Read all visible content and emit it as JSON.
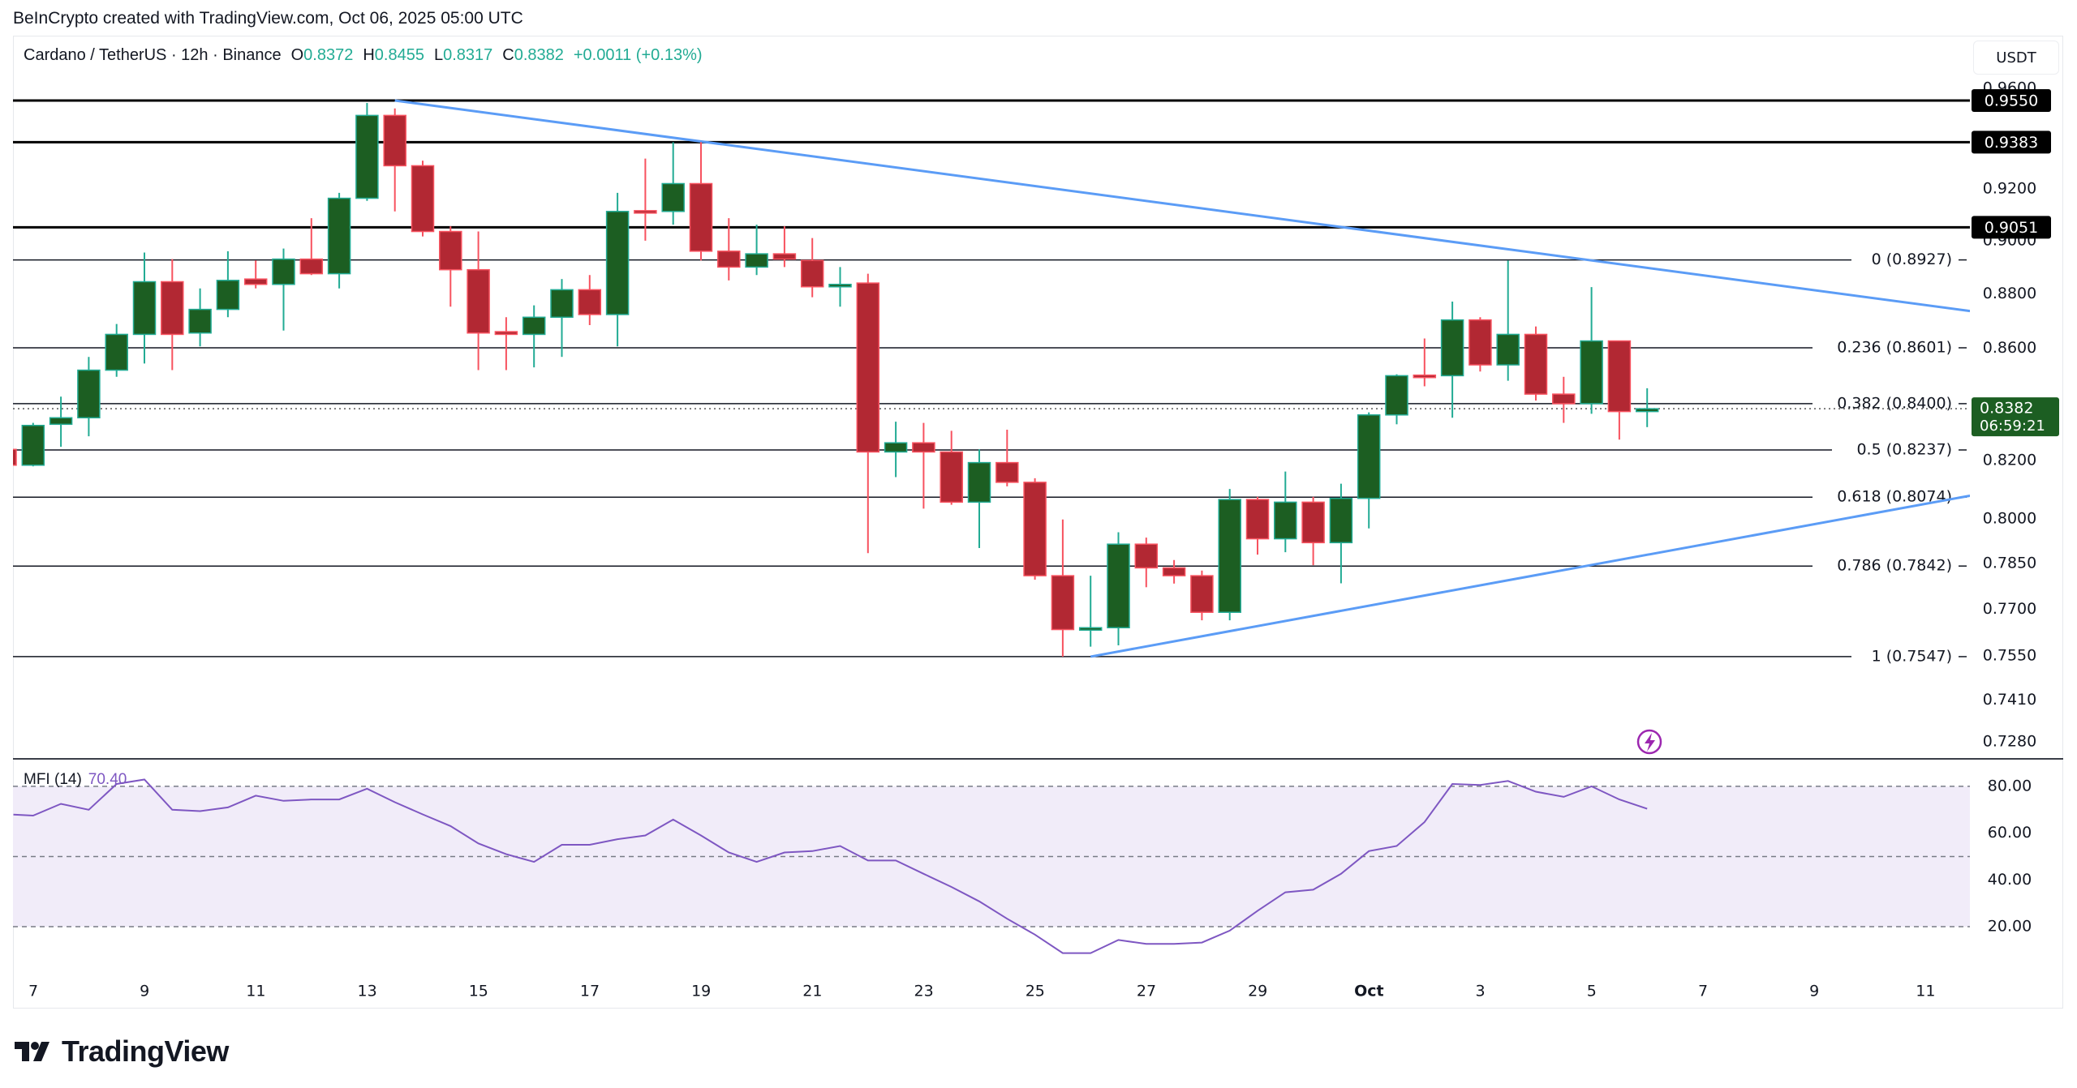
{
  "header": {
    "attribution": "BeInCrypto created with TradingView.com, Oct 06, 2025 05:00 UTC"
  },
  "symbol": {
    "name": "Cardano / TetherUS · 12h · Binance",
    "o_label": "O",
    "o": "0.8372",
    "h_label": "H",
    "h": "0.8455",
    "l_label": "L",
    "l": "0.8317",
    "c_label": "C",
    "c": "0.8382",
    "change": "+0.0011 (+0.13%)"
  },
  "currency_button": "USDT",
  "colors": {
    "up_body": "#1c5e22",
    "up_border": "#22ab94",
    "down_body": "#b22833",
    "down_border": "#f7525f",
    "trendline": "#5b9cf6",
    "mfi_line": "#7e57c2",
    "mfi_band": "#f1ecf9",
    "last_price_bg": "#1c5e22",
    "lightning": "#9c27b0"
  },
  "chart_data": {
    "type": "candlestick",
    "title": "Cardano / TetherUS · 12h · Binance",
    "scale": "log",
    "ylim": [
      0.72,
      0.965
    ],
    "candles": {
      "open": [
        0.8239,
        0.8184,
        0.8327,
        0.835,
        0.852,
        0.865,
        0.8845,
        0.8655,
        0.8742,
        0.8855,
        0.8835,
        0.893,
        0.8875,
        0.9163,
        0.949,
        0.929,
        0.9035,
        0.889,
        0.866,
        0.865,
        0.8713,
        0.8815,
        0.8723,
        0.9115,
        0.9112,
        0.922,
        0.896,
        0.89,
        0.895,
        0.8925,
        0.8826,
        0.884,
        0.823,
        0.8262,
        0.823,
        0.8057,
        0.8193,
        0.8125,
        0.781,
        0.7634,
        0.764,
        0.7915,
        0.7836,
        0.781,
        0.769,
        0.8066,
        0.7933,
        0.8057,
        0.792,
        0.807,
        0.836,
        0.8502,
        0.85,
        0.8703,
        0.8539,
        0.865,
        0.8434,
        0.84,
        0.8626,
        0.8372
      ],
      "high": [
        0.8245,
        0.8332,
        0.8425,
        0.8568,
        0.8688,
        0.8955,
        0.893,
        0.882,
        0.896,
        0.8925,
        0.897,
        0.9086,
        0.9184,
        0.954,
        0.9518,
        0.931,
        0.9055,
        0.9035,
        0.8713,
        0.8757,
        0.8855,
        0.887,
        0.9184,
        0.9318,
        0.9383,
        0.9383,
        0.9086,
        0.9061,
        0.9055,
        0.901,
        0.89,
        0.8875,
        0.8336,
        0.8332,
        0.8304,
        0.8239,
        0.8308,
        0.8139,
        0.7998,
        0.781,
        0.7955,
        0.7937,
        0.7862,
        0.7827,
        0.8102,
        0.8075,
        0.8162,
        0.8075,
        0.812,
        0.8369,
        0.8505,
        0.8635,
        0.8771,
        0.8713,
        0.8925,
        0.8679,
        0.8496,
        0.8825,
        0.8626,
        0.8455
      ],
      "low": [
        0.818,
        0.818,
        0.8248,
        0.8285,
        0.8496,
        0.8544,
        0.852,
        0.8606,
        0.8713,
        0.882,
        0.8664,
        0.887,
        0.882,
        0.9153,
        0.9112,
        0.9016,
        0.8752,
        0.852,
        0.852,
        0.853,
        0.8568,
        0.8684,
        0.8606,
        0.9,
        0.9061,
        0.8925,
        0.885,
        0.887,
        0.89,
        0.8787,
        0.8752,
        0.7885,
        0.8143,
        0.8035,
        0.8048,
        0.7902,
        0.8111,
        0.7797,
        0.7547,
        0.7579,
        0.7583,
        0.7772,
        0.7784,
        0.7664,
        0.7664,
        0.788,
        0.7888,
        0.7845,
        0.7785,
        0.7968,
        0.8327,
        0.8462,
        0.835,
        0.8515,
        0.8482,
        0.8411,
        0.8332,
        0.8364,
        0.8273,
        0.8317
      ],
      "close": [
        0.8184,
        0.8323,
        0.835,
        0.852,
        0.865,
        0.8845,
        0.865,
        0.8742,
        0.885,
        0.8835,
        0.893,
        0.8875,
        0.9163,
        0.949,
        0.929,
        0.9035,
        0.889,
        0.8655,
        0.865,
        0.8713,
        0.8815,
        0.8723,
        0.9112,
        0.911,
        0.922,
        0.896,
        0.89,
        0.895,
        0.893,
        0.8826,
        0.8835,
        0.823,
        0.8262,
        0.823,
        0.8057,
        0.8193,
        0.8125,
        0.781,
        0.7634,
        0.764,
        0.7915,
        0.7836,
        0.781,
        0.769,
        0.8066,
        0.7933,
        0.8057,
        0.792,
        0.807,
        0.836,
        0.85,
        0.8498,
        0.8703,
        0.8539,
        0.865,
        0.8434,
        0.84,
        0.8626,
        0.8372,
        0.8382
      ]
    },
    "price_ticks": [
      "0.9600",
      "0.9200",
      "0.9000",
      "0.8800",
      "0.8600",
      "0.8200",
      "0.8000",
      "0.7850",
      "0.7700",
      "0.7550",
      "0.7410",
      "0.7280"
    ],
    "horizontal_levels": [
      "0.9550",
      "0.9383",
      "0.9051"
    ],
    "fib_levels": [
      {
        "ratio": "0",
        "price": "0.8927"
      },
      {
        "ratio": "0.236",
        "price": "0.8601"
      },
      {
        "ratio": "0.382",
        "price": "0.8400"
      },
      {
        "ratio": "0.5",
        "price": "0.8237"
      },
      {
        "ratio": "0.618",
        "price": "0.8074"
      },
      {
        "ratio": "0.786",
        "price": "0.7842"
      },
      {
        "ratio": "1",
        "price": "0.7547"
      }
    ],
    "trendlines": [
      {
        "name": "descending-resistance",
        "from": {
          "bar": 14,
          "price": 0.955
        },
        "to": {
          "bar": 70.6,
          "price": 0.8736
        }
      },
      {
        "name": "ascending-support",
        "from": {
          "bar": 39,
          "price": 0.7547
        },
        "to": {
          "bar": 70.6,
          "price": 0.8079
        }
      }
    ],
    "last_price": "0.8382",
    "countdown": "06:59:21",
    "x_ticks": [
      {
        "label": "7",
        "day": 0
      },
      {
        "label": "9",
        "day": 2
      },
      {
        "label": "11",
        "day": 4
      },
      {
        "label": "13",
        "day": 6
      },
      {
        "label": "15",
        "day": 8
      },
      {
        "label": "17",
        "day": 10
      },
      {
        "label": "19",
        "day": 12
      },
      {
        "label": "21",
        "day": 14
      },
      {
        "label": "23",
        "day": 16
      },
      {
        "label": "25",
        "day": 18
      },
      {
        "label": "27",
        "day": 20
      },
      {
        "label": "29",
        "day": 22
      },
      {
        "label": "Oct",
        "day": 24,
        "bold": true
      },
      {
        "label": "3",
        "day": 26
      },
      {
        "label": "5",
        "day": 28
      },
      {
        "label": "7",
        "day": 30
      },
      {
        "label": "9",
        "day": 32
      },
      {
        "label": "11",
        "day": 34
      }
    ],
    "mfi": {
      "label": "MFI (14)",
      "value": "70.40",
      "ylim": [
        0,
        100
      ],
      "band": [
        20,
        80
      ],
      "levels": [
        80,
        50,
        20
      ],
      "ticks": [
        "80.00",
        "60.00",
        "40.00",
        "20.00"
      ],
      "values": [
        67.9,
        67.5,
        72.5,
        70,
        81,
        82.9,
        70,
        69.4,
        71,
        76,
        73.8,
        74.4,
        74.4,
        79,
        73.2,
        68,
        63,
        55.6,
        51,
        47.7,
        55,
        55,
        57.4,
        59,
        65.8,
        59,
        51.7,
        47.7,
        51.7,
        52.3,
        54.5,
        48.3,
        48.3,
        42.6,
        37,
        30.8,
        23.4,
        16.6,
        8.7,
        8.7,
        14.3,
        12.6,
        12.6,
        13.2,
        18.3,
        26.8,
        34.7,
        35.8,
        42.6,
        52.3,
        54.5,
        64.7,
        81,
        80.6,
        82.3,
        77.7,
        75.5,
        80,
        74.4,
        70.4
      ]
    }
  },
  "branding": {
    "logo_text": "TradingView"
  }
}
